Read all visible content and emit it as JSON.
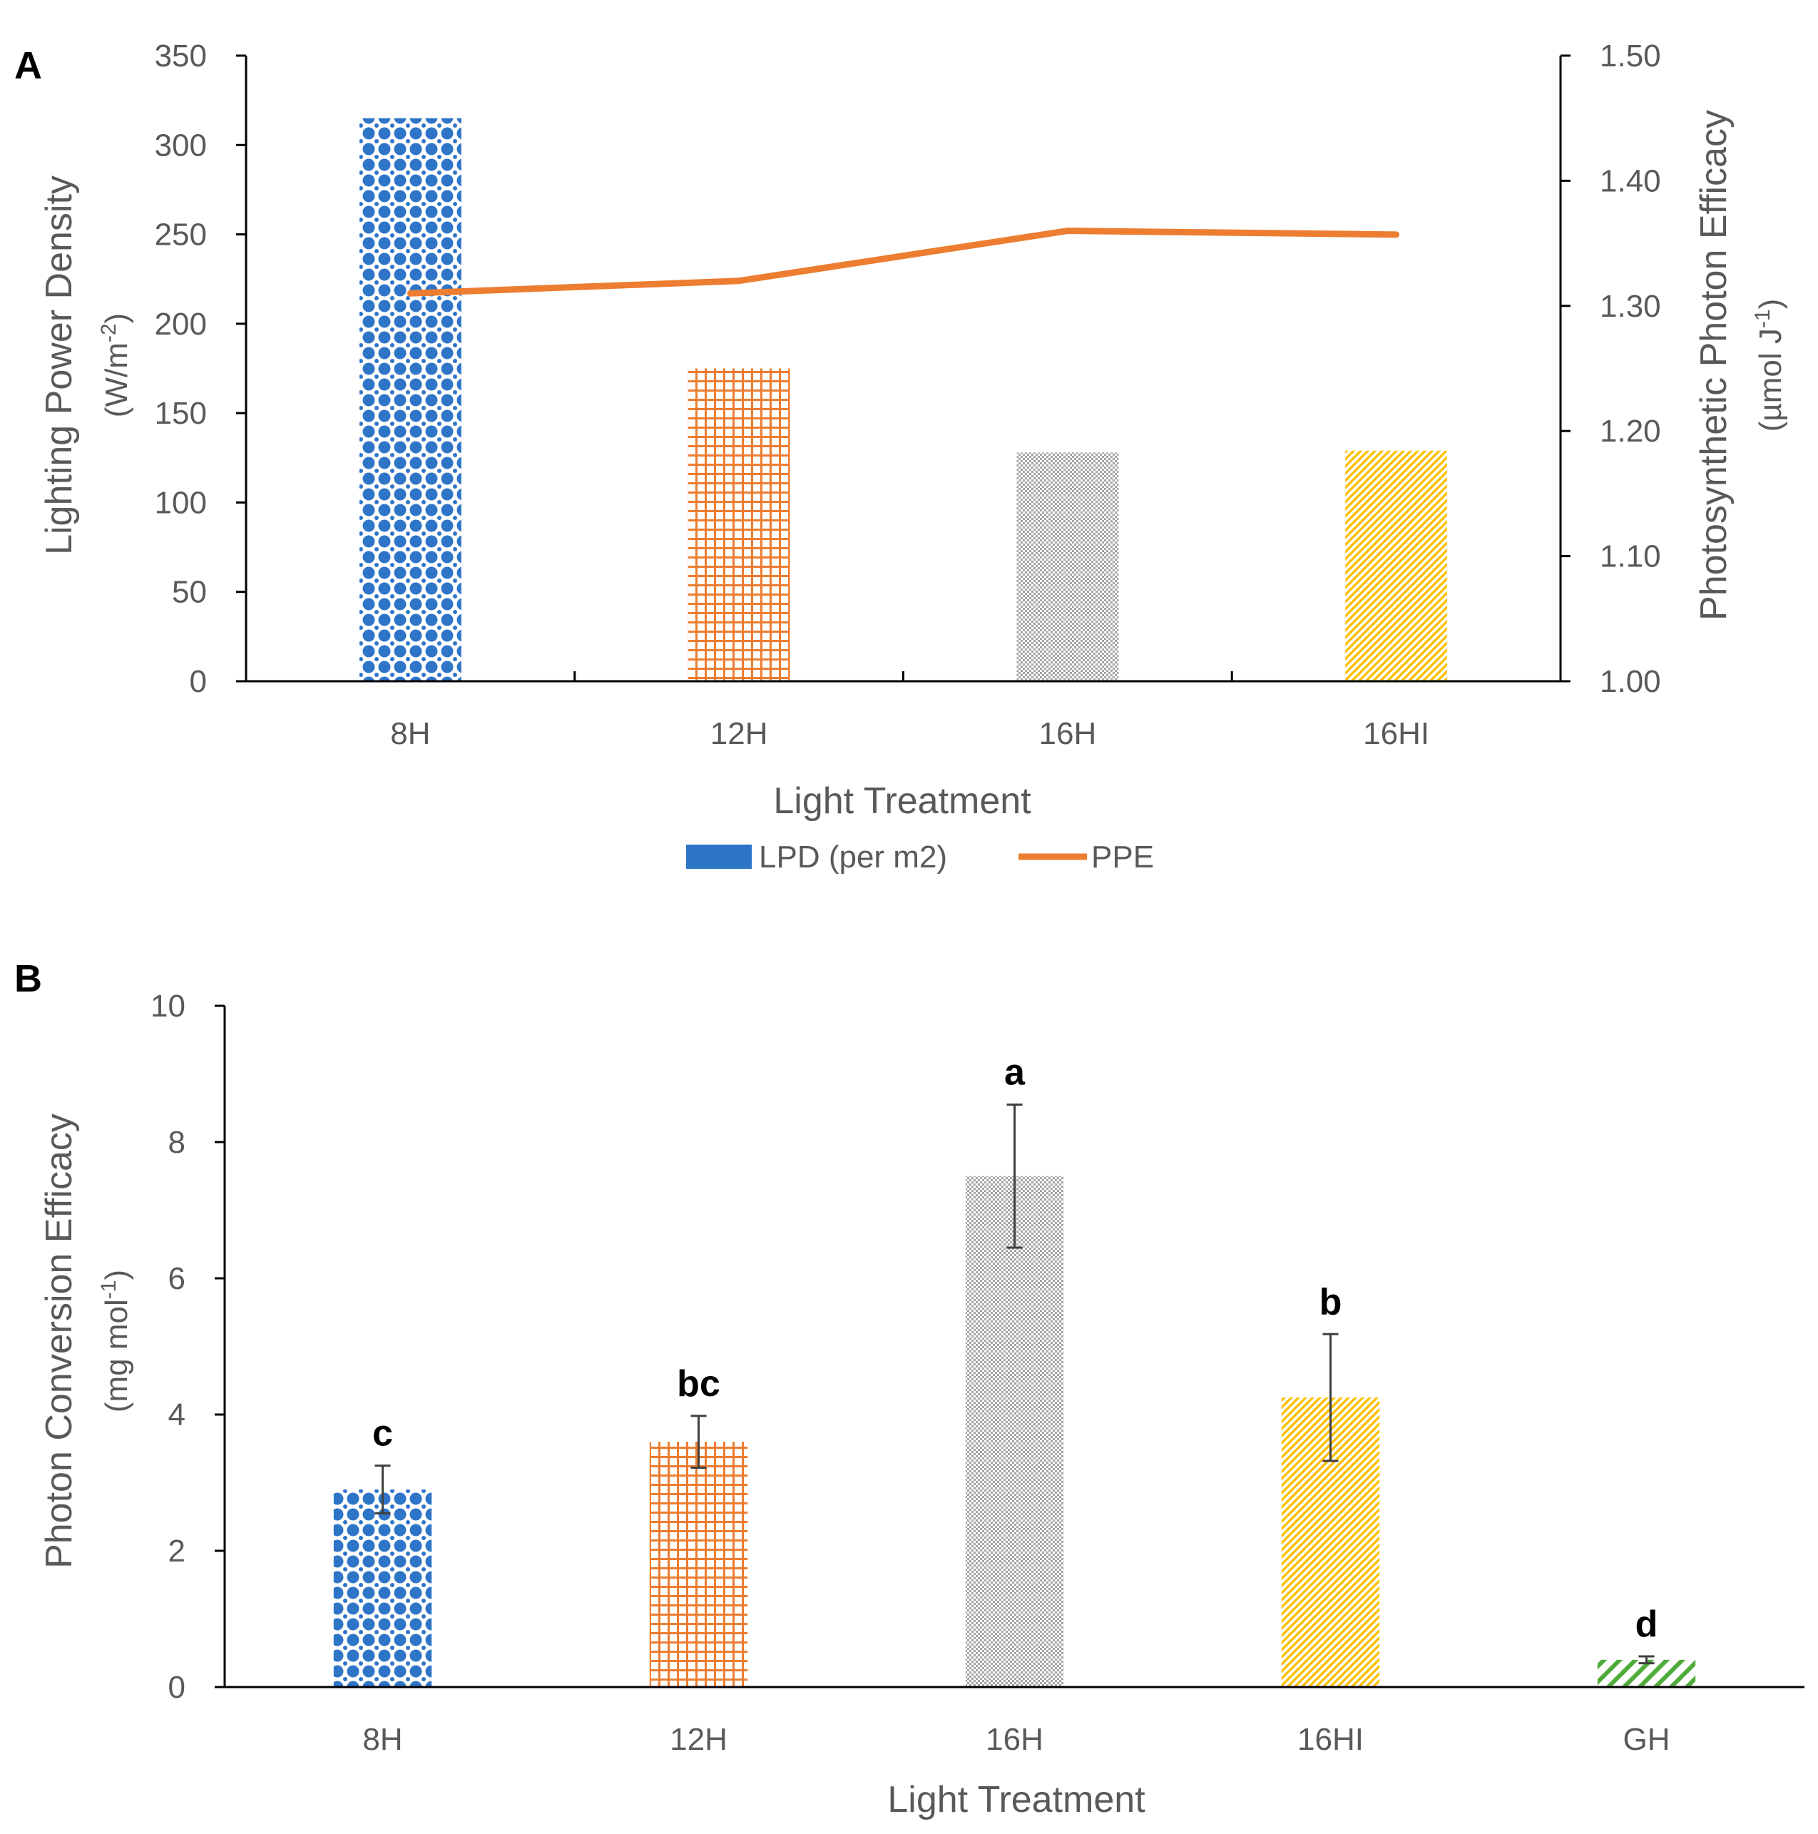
{
  "figure": {
    "panel_a_label": "A",
    "panel_b_label": "B"
  },
  "colors": {
    "blue": "#2e75c8",
    "orange": "#ed7d31",
    "gray": "#a5a5a5",
    "gold": "#ffc000",
    "green": "#4fab3a",
    "axis": "#000000",
    "text": "#595959"
  },
  "chart_data": [
    {
      "type": "bar",
      "panel": "A",
      "title": "",
      "categories": [
        "8H",
        "12H",
        "16H",
        "16HI"
      ],
      "xlabel": "Light Treatment",
      "ylabel": "Lighting Power Density",
      "ylabel_unit_prefix": "(W/m",
      "ylabel_unit_sup": "-2",
      "ylabel_unit_suffix": ")",
      "ylim": [
        0,
        350
      ],
      "yticks": [
        "0",
        "50",
        "100",
        "150",
        "200",
        "250",
        "300",
        "350"
      ],
      "y2label": "Photosynthetic Photon Efficacy",
      "y2label_unit_prefix": "(µmol J",
      "y2label_unit_sup": "-1",
      "y2label_unit_suffix": ")",
      "y2lim": [
        1.0,
        1.5
      ],
      "y2ticks": [
        "1.00",
        "1.10",
        "1.20",
        "1.30",
        "1.40",
        "1.50"
      ],
      "series": [
        {
          "name": "LPD (per m2)",
          "type": "bar",
          "axis": "left",
          "values": [
            315,
            175,
            128,
            129
          ]
        },
        {
          "name": "PPE",
          "type": "line",
          "axis": "right",
          "values": [
            1.31,
            1.32,
            1.36,
            1.357
          ]
        }
      ],
      "legend": [
        "LPD (per m2)",
        "PPE"
      ],
      "legend_position": "bottom-center"
    },
    {
      "type": "bar",
      "panel": "B",
      "title": "",
      "categories": [
        "8H",
        "12H",
        "16H",
        "16HI",
        "GH"
      ],
      "values": [
        2.9,
        3.6,
        7.5,
        4.25,
        0.4
      ],
      "errors": [
        0.35,
        0.38,
        1.05,
        0.93,
        0.05
      ],
      "significance": [
        "c",
        "bc",
        "a",
        "b",
        "d"
      ],
      "xlabel": "Light Treatment",
      "ylabel": "Photon Conversion Efficacy",
      "ylabel_unit_prefix": "(mg mol",
      "ylabel_unit_sup": "-1",
      "ylabel_unit_suffix": ")",
      "ylim": [
        0,
        10
      ],
      "yticks": [
        "0",
        "2",
        "4",
        "6",
        "8",
        "10"
      ]
    }
  ]
}
